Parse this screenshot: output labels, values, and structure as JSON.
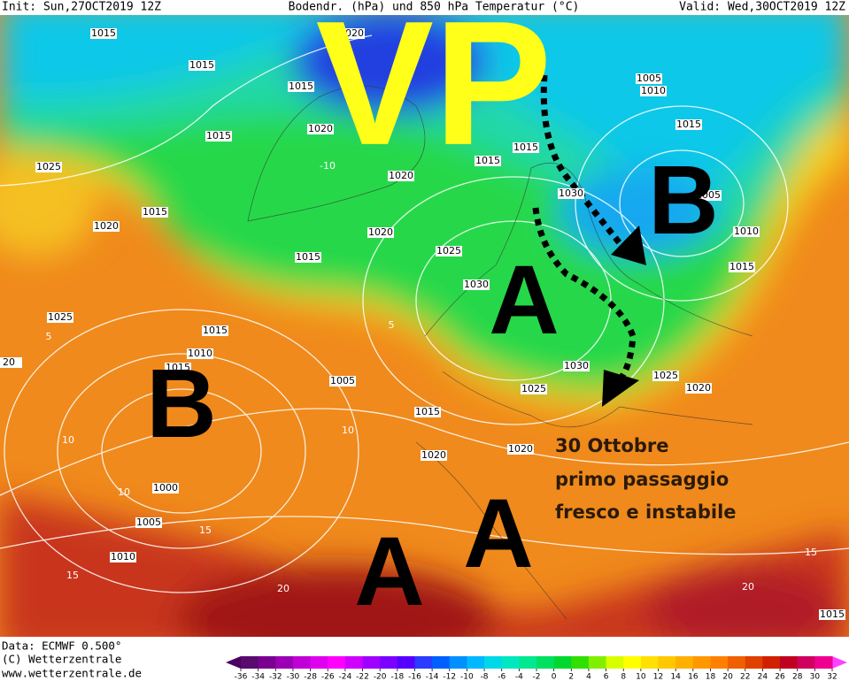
{
  "header": {
    "init": "Init: Sun,27OCT2019 12Z",
    "title": "Bodendr. (hPa) und 850 hPa Temperatur (°C)",
    "valid": "Valid: Wed,30OCT2019 12Z"
  },
  "annotations": {
    "vortex": "VP",
    "low_east": "B",
    "high_central": "A",
    "low_west": "B",
    "high_south_1": "A",
    "high_south_2": "A",
    "note": [
      "30 Ottobre",
      "primo passaggio",
      "fresco e instabile"
    ]
  },
  "isobar_labels": [
    1015,
    1020,
    1015,
    1015,
    1005,
    1010,
    1015,
    1020,
    1015,
    1015,
    1015,
    1025,
    1020,
    1030,
    1005,
    1015,
    1020,
    1020,
    1010,
    1025,
    1015,
    1015,
    1030,
    1025,
    1015,
    20,
    1010,
    1015,
    1030,
    1025,
    1005,
    1025,
    1020,
    1015,
    1020,
    1020,
    1000,
    1005,
    1010,
    1015
  ],
  "temperature_labels": [
    -10,
    5,
    10,
    10,
    10,
    15,
    15,
    15,
    20,
    20,
    5
  ],
  "colorbar": {
    "ticks": [
      -36,
      -34,
      -32,
      -30,
      -28,
      -26,
      -24,
      -22,
      -20,
      -18,
      -16,
      -14,
      -12,
      -10,
      -8,
      -6,
      -4,
      -2,
      0,
      2,
      4,
      6,
      8,
      10,
      12,
      14,
      16,
      18,
      20,
      22,
      24,
      26,
      28,
      30,
      32
    ],
    "colors": [
      "#5a0a6e",
      "#7a0090",
      "#9b00b4",
      "#c000d6",
      "#e000f0",
      "#ff00ff",
      "#d000ff",
      "#a000ff",
      "#7a00ff",
      "#5500ff",
      "#2a3cff",
      "#0060ff",
      "#0090ff",
      "#00b8ff",
      "#00d8e8",
      "#00e8c0",
      "#00e890",
      "#00e060",
      "#00d830",
      "#30e000",
      "#80f000",
      "#d8ff00",
      "#ffff00",
      "#ffe000",
      "#ffc800",
      "#ffb000",
      "#ff9800",
      "#ff8000",
      "#f06000",
      "#e04000",
      "#d02000",
      "#c00020",
      "#d00060",
      "#f00090"
    ]
  },
  "footer": {
    "data": "Data: ECMWF  0.500°",
    "copyright": "(C) Wetterzentrale",
    "url": "www.wetterzentrale.de"
  }
}
